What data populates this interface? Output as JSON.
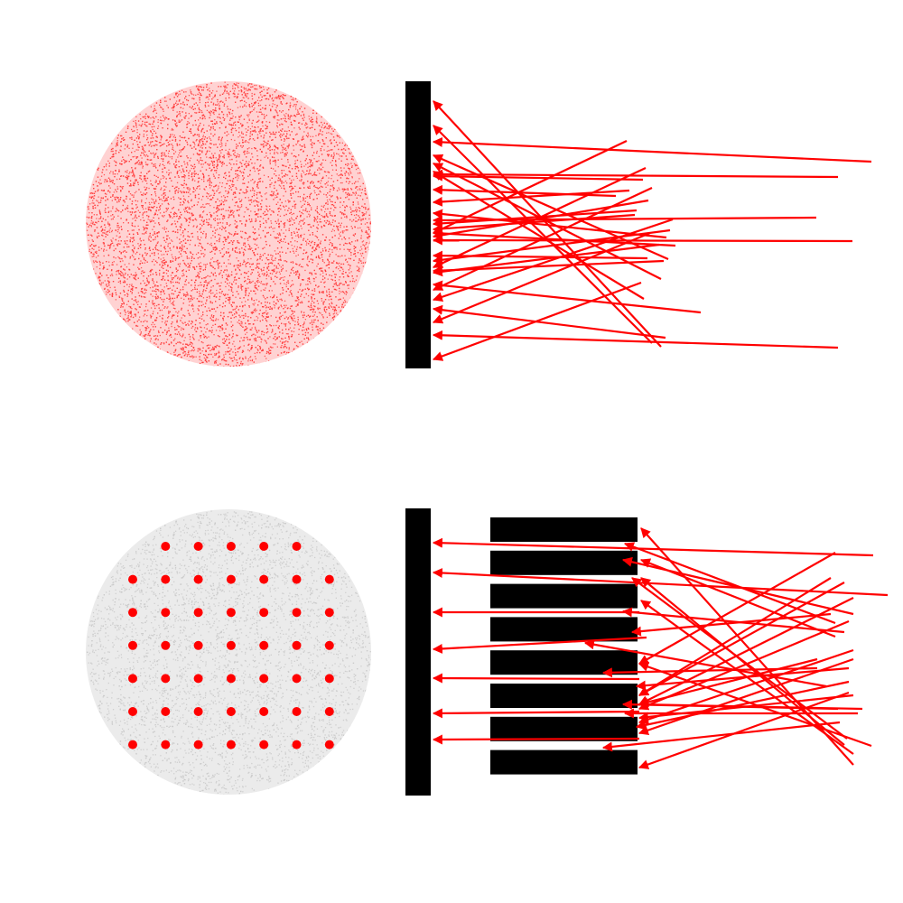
{
  "colors": {
    "ray": "#ff0000",
    "wall": "#000000",
    "background": "#ffffff",
    "noise_red": "#ff3b3b",
    "noise_gray": "#c8c8c8",
    "grid_dot": "#ff0000"
  },
  "panels": [
    {
      "name": "without-collimator",
      "detector_pattern": "random-red-noise",
      "collimator_plates": 0,
      "ray_count": 30
    },
    {
      "name": "with-collimator",
      "detector_pattern": "dot-grid",
      "dot_grid": {
        "rows": [
          [
            0,
            1,
            1,
            1,
            1,
            1,
            0
          ],
          [
            1,
            1,
            1,
            1,
            1,
            1,
            1
          ],
          [
            1,
            1,
            1,
            1,
            1,
            1,
            1
          ],
          [
            1,
            1,
            1,
            1,
            1,
            1,
            1
          ],
          [
            1,
            1,
            1,
            1,
            1,
            1,
            1
          ],
          [
            1,
            1,
            1,
            1,
            1,
            1,
            1
          ],
          [
            1,
            1,
            1,
            1,
            1,
            1,
            1
          ]
        ]
      },
      "collimator_plates": 8,
      "ray_count": 35
    }
  ]
}
